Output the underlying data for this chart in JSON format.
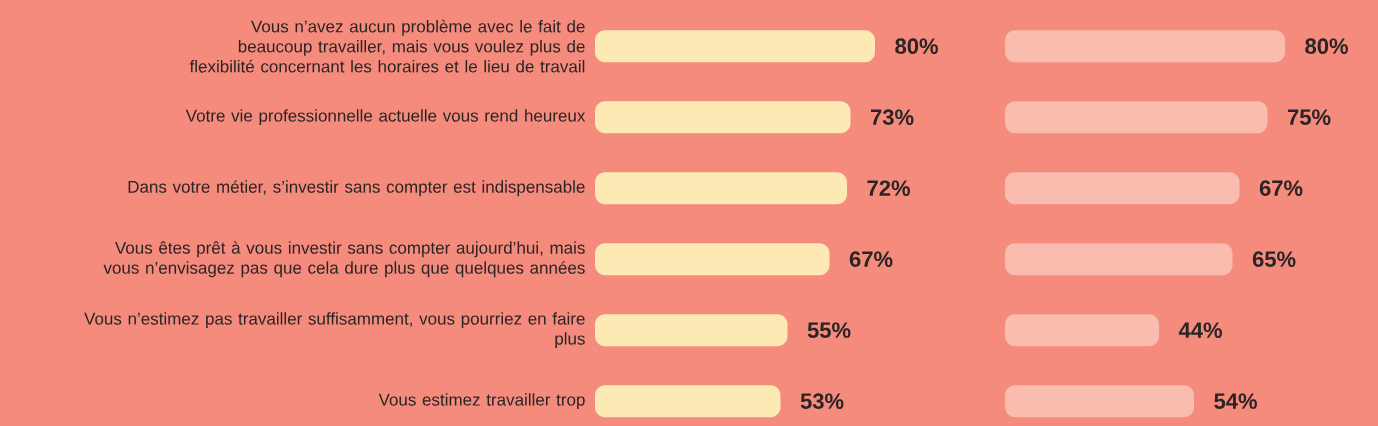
{
  "chart_data": [
    {
      "type": "bar",
      "orientation": "horizontal",
      "color": "#fde9b4",
      "tick_labels": "y",
      "categories": [
        "Vous n’avez aucun problème avec le fait de beaucoup travailler, mais vous voulez plus de flexibilité concernant les horaires et le lieu de travail",
        "Votre vie professionnelle actuelle vous rend heureux",
        "Dans votre métier, s’investir sans compter est indispensable",
        "Vous êtes prêt à vous investir sans compter aujourd’hui, mais vous n’envisagez pas que cela dure plus que quelques années",
        "Vous n’estimez pas travailler suffisamment, vous pourriez en faire plus",
        "Vous estimez travailler trop"
      ],
      "values": [
        80,
        73,
        72,
        67,
        55,
        53
      ],
      "value_labels": [
        "80%",
        "73%",
        "72%",
        "67%",
        "55%",
        "53%"
      ]
    },
    {
      "type": "bar",
      "orientation": "horizontal",
      "color": "#f9bcaf",
      "tick_labels": false,
      "categories": [
        null,
        null,
        null,
        null,
        null,
        null
      ],
      "values": [
        80,
        75,
        67,
        65,
        44,
        54
      ],
      "value_labels": [
        "80%",
        "75%",
        "67%",
        "65%",
        "44%",
        "54%"
      ]
    }
  ]
}
